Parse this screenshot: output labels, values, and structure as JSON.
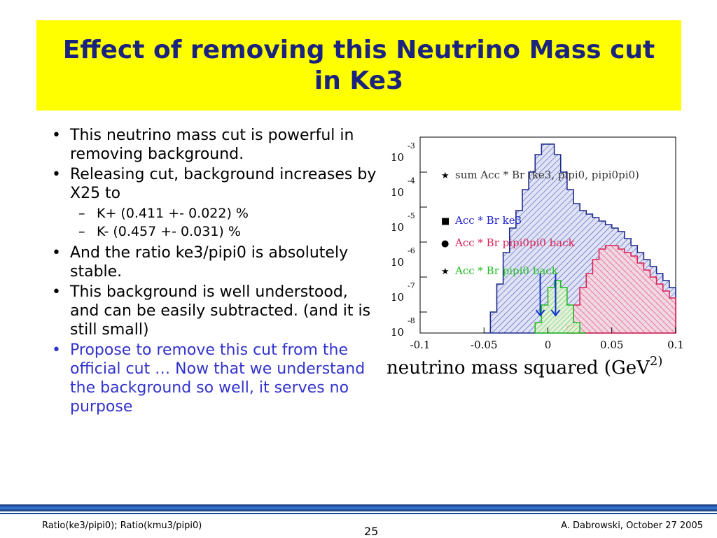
{
  "slide": {
    "title": "Effect of removing this Neutrino Mass cut in Ke3",
    "bullets": [
      {
        "text": "This neutrino mass cut is powerful in removing background."
      },
      {
        "text": "Releasing cut, background increases by X25 to"
      },
      {
        "text": "K+ (0.411 +- 0.022) %"
      },
      {
        "text": "K- (0.457 +- 0.031) %"
      },
      {
        "text": "And the ratio ke3/pipi0 is absolutely stable."
      },
      {
        "text": "This background is well understood, and can be easily subtracted. (and it is still small)"
      },
      {
        "text": "Propose to remove this cut from the official cut … Now that we understand the background so well, it serves no purpose"
      }
    ],
    "bullet_color_highlight": "#3333cc",
    "title_bg": "#ffff00",
    "title_color": "#1a237e"
  },
  "chart_data": {
    "type": "area",
    "xlabel": "neutrino mass squared  (GeV",
    "xlabel_sup": "2)",
    "xlim": [
      -0.1,
      0.1
    ],
    "y_scale": "log",
    "ylim_exponents": [
      -8.6,
      -3
    ],
    "x_ticks": [
      "-0.1",
      "-0.05",
      "0",
      "0.05",
      "0.1"
    ],
    "y_ticks": [
      {
        "base": "10",
        "exp": "-3"
      },
      {
        "base": "10",
        "exp": "-4"
      },
      {
        "base": "10",
        "exp": "-5"
      },
      {
        "base": "10",
        "exp": "-6"
      },
      {
        "base": "10",
        "exp": "-7"
      },
      {
        "base": "10",
        "exp": "-8"
      }
    ],
    "legend": [
      {
        "marker": "★",
        "text": "sum Acc * Br (ke3, pipi0, pipi0pi0)",
        "color": "#333333"
      },
      {
        "marker": "■",
        "text": "Acc * Br ke3",
        "color": "#2222cc"
      },
      {
        "marker": "●",
        "text": "Acc * Br pipi0pi0 back",
        "color": "#dd2255"
      },
      {
        "marker": "★",
        "text": "Acc * Br pipi0 back",
        "color": "#22bb22"
      }
    ],
    "series": [
      {
        "name": "sum Acc * Br (ke3, pipi0, pipi0pi0)",
        "color": "#1f2a8a",
        "x": [
          -0.05,
          -0.045,
          -0.04,
          -0.035,
          -0.03,
          -0.025,
          -0.02,
          -0.015,
          -0.01,
          -0.005,
          0.0,
          0.005,
          0.01,
          0.015,
          0.02,
          0.025,
          0.03,
          0.035,
          0.04,
          0.045,
          0.05,
          0.055,
          0.06,
          0.065,
          0.07,
          0.075,
          0.08,
          0.085,
          0.09,
          0.095
        ],
        "y_exp": [
          -8.6,
          -8.0,
          -7.2,
          -6.3,
          -5.6,
          -5.1,
          -4.5,
          -4.0,
          -3.5,
          -3.2,
          -3.2,
          -3.5,
          -4.0,
          -4.5,
          -4.9,
          -5.1,
          -5.2,
          -5.3,
          -5.4,
          -5.5,
          -5.6,
          -5.7,
          -5.9,
          -6.1,
          -6.3,
          -6.5,
          -6.7,
          -6.9,
          -7.1,
          -7.3
        ]
      },
      {
        "name": "Acc * Br pipi0pi0 back",
        "color": "#dd2255",
        "x": [
          0.015,
          0.02,
          0.025,
          0.03,
          0.035,
          0.04,
          0.045,
          0.05,
          0.055,
          0.06,
          0.065,
          0.07,
          0.075,
          0.08,
          0.085,
          0.09,
          0.095
        ],
        "y_exp": [
          -8.4,
          -7.8,
          -7.3,
          -6.9,
          -6.5,
          -6.2,
          -6.1,
          -6.1,
          -6.2,
          -6.3,
          -6.4,
          -6.6,
          -6.8,
          -7.0,
          -7.2,
          -7.4,
          -7.6
        ]
      },
      {
        "name": "Acc * Br pipi0 back",
        "color": "#22bb22",
        "x": [
          -0.01,
          -0.005,
          0.0,
          0.005,
          0.01,
          0.015,
          0.02,
          0.025
        ],
        "y_exp": [
          -8.3,
          -7.8,
          -7.3,
          -7.1,
          -7.3,
          -7.8,
          -8.3,
          -8.6
        ]
      }
    ],
    "arrows_x": [
      -0.006,
      0.006
    ]
  },
  "footer": {
    "left": "Ratio(ke3/pipi0); Ratio(kmu3/pipi0)",
    "page": "25",
    "right": "A. Dabrowski, October 27 2005"
  }
}
